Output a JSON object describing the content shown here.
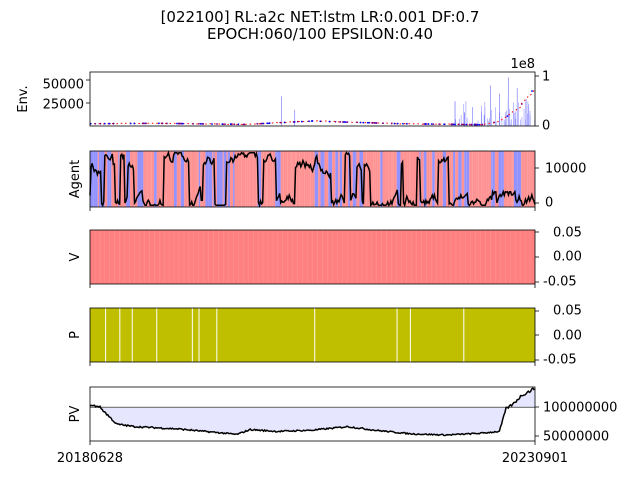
{
  "figure": {
    "title_line1": "[022100] RL:a2c NET:lstm LR:0.001 DF:0.7",
    "title_line2": "EPOCH:060/100 EPSILON:0.40"
  },
  "chart_data": [
    {
      "name": "env",
      "type": "line",
      "ylabel": "Env.",
      "left_ticks": [
        "50000",
        "25000"
      ],
      "left_tick_values": [
        50000,
        25000
      ],
      "left_ylim": [
        2000,
        62000
      ],
      "right_ticks": [
        "1",
        "0"
      ],
      "right_tick_values": [
        1,
        0
      ],
      "right_ylim": [
        0,
        1.05
      ],
      "right_offset_label": "1e8",
      "price_keypoints": [
        [
          0,
          4500
        ],
        [
          0.15,
          5000
        ],
        [
          0.35,
          3800
        ],
        [
          0.5,
          7500
        ],
        [
          0.7,
          4500
        ],
        [
          0.88,
          3500
        ],
        [
          0.92,
          7000
        ],
        [
          0.96,
          20000
        ],
        [
          1.0,
          45000
        ]
      ],
      "volume_spikes": [
        [
          0.43,
          0.55
        ],
        [
          0.46,
          0.3
        ],
        [
          0.86,
          0.35
        ],
        [
          0.9,
          0.75
        ],
        [
          0.92,
          0.6
        ],
        [
          0.94,
          0.9
        ],
        [
          0.96,
          0.7
        ],
        [
          0.98,
          0.5
        ]
      ]
    },
    {
      "name": "agent",
      "type": "area",
      "ylabel": "Agent",
      "right_ticks": [
        "10000",
        "0"
      ],
      "right_tick_values": [
        10000,
        0
      ],
      "ylim": [
        -500,
        16000
      ],
      "colors": {
        "buy": "#ff8080",
        "sell": "#8080ff",
        "line": "#000000"
      }
    },
    {
      "name": "value",
      "type": "area",
      "ylabel": "V",
      "right_ticks": [
        "0.05",
        "0.00",
        "-0.05"
      ],
      "right_tick_values": [
        0.05,
        0.0,
        -0.05
      ],
      "ylim": [
        -0.055,
        0.055
      ],
      "fill_color": "#ff8080"
    },
    {
      "name": "policy",
      "type": "area",
      "ylabel": "P",
      "right_ticks": [
        "0.05",
        "0.00",
        "-0.05"
      ],
      "right_tick_values": [
        0.05,
        0.0,
        -0.05
      ],
      "ylim": [
        -0.055,
        0.055
      ],
      "fill_color": "#bfbf00",
      "gap_positions": [
        0.035,
        0.067,
        0.095,
        0.15,
        0.23,
        0.245,
        0.285,
        0.505,
        0.69,
        0.72,
        0.84
      ]
    },
    {
      "name": "pv",
      "type": "line",
      "ylabel": "PV",
      "right_ticks": [
        "100000000",
        "50000000"
      ],
      "right_tick_values": [
        100000000,
        50000000
      ],
      "ylim": [
        44000000,
        134000000
      ],
      "baseline": 100000000,
      "x_ticks": [
        "20180628",
        "20230901"
      ],
      "fill_color": "#e6e6ff",
      "keypoints": [
        [
          0,
          103000000
        ],
        [
          0.02,
          102000000
        ],
        [
          0.06,
          72000000
        ],
        [
          0.1,
          68000000
        ],
        [
          0.2,
          64000000
        ],
        [
          0.33,
          55000000
        ],
        [
          0.36,
          63000000
        ],
        [
          0.42,
          60000000
        ],
        [
          0.5,
          62000000
        ],
        [
          0.58,
          68000000
        ],
        [
          0.64,
          62000000
        ],
        [
          0.72,
          56000000
        ],
        [
          0.8,
          54000000
        ],
        [
          0.88,
          57000000
        ],
        [
          0.92,
          60000000
        ],
        [
          0.935,
          98000000
        ],
        [
          0.95,
          105000000
        ],
        [
          0.97,
          120000000
        ],
        [
          1.0,
          132000000
        ]
      ]
    }
  ]
}
